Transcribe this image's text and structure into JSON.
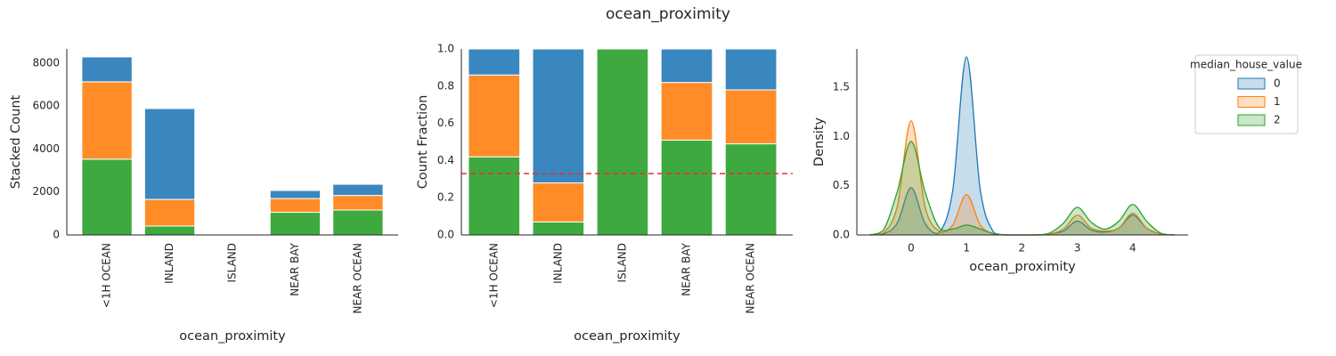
{
  "title": "ocean_proximity",
  "chart_data": [
    {
      "type": "bar",
      "stacked": true,
      "ylabel": "Stacked Count",
      "xlabel": "ocean_proximity",
      "categories": [
        "<1H OCEAN",
        "INLAND",
        "ISLAND",
        "NEAR BAY",
        "NEAR OCEAN"
      ],
      "ylim": [
        0,
        8660
      ],
      "yticks": [
        0,
        2000,
        4000,
        6000,
        8000
      ],
      "series": [
        {
          "color": "#3a87bf",
          "values": [
            1160,
            4230,
            0,
            375,
            520
          ]
        },
        {
          "color": "#ff8c26",
          "values": [
            3600,
            1240,
            0,
            640,
            680
          ]
        },
        {
          "color": "#3ea93f",
          "values": [
            3530,
            415,
            5,
            1055,
            1160
          ]
        }
      ]
    },
    {
      "type": "bar",
      "stacked": true,
      "ylabel": "Count Fraction",
      "xlabel": "ocean_proximity",
      "categories": [
        "<1H OCEAN",
        "INLAND",
        "ISLAND",
        "NEAR BAY",
        "NEAR OCEAN"
      ],
      "ylim": [
        0,
        1
      ],
      "yticks": [
        {
          "value": 0,
          "label": "0.0"
        },
        0.2,
        0.4,
        0.6,
        0.8,
        {
          "value": 1,
          "label": "1.0"
        }
      ],
      "hline": {
        "value": 0.33,
        "color": "#e8302a"
      },
      "series": [
        {
          "color": "#3a87bf",
          "values": [
            0.14,
            0.72,
            0,
            0.18,
            0.22
          ]
        },
        {
          "color": "#ff8c26",
          "values": [
            0.44,
            0.21,
            0,
            0.31,
            0.29
          ]
        },
        {
          "color": "#3ea93f",
          "values": [
            0.42,
            0.07,
            1,
            0.51,
            0.49
          ]
        }
      ]
    },
    {
      "type": "kde",
      "ylabel": "Density",
      "xlabel": "ocean_proximity",
      "x": [
        -0.75,
        -0.5,
        -0.25,
        0,
        0.25,
        0.5,
        0.75,
        1,
        1.25,
        1.5,
        1.75,
        2,
        2.25,
        2.5,
        2.75,
        3,
        3.25,
        3.5,
        3.75,
        4,
        4.25,
        4.5,
        4.75
      ],
      "xlim": [
        -0.98,
        5.0
      ],
      "xticks": [
        0,
        1,
        2,
        3,
        4
      ],
      "ylim": [
        0,
        1.89
      ],
      "yticks": [
        {
          "value": 0,
          "label": "0.0"
        },
        0.5,
        {
          "value": 1,
          "label": "1.0"
        },
        1.5
      ],
      "legend": {
        "title": "median_house_value",
        "position": "outside right"
      },
      "series": [
        {
          "name": "0",
          "color": "#1f77b4",
          "values": [
            0,
            0.01,
            0.12,
            0.48,
            0.12,
            0.02,
            0.45,
            1.81,
            0.45,
            0.02,
            0,
            0,
            0,
            0.01,
            0.04,
            0.14,
            0.05,
            0.03,
            0.07,
            0.2,
            0.07,
            0.01,
            0
          ]
        },
        {
          "name": "1",
          "color": "#ff7f0e",
          "values": [
            0,
            0.02,
            0.29,
            1.16,
            0.29,
            0.04,
            0.1,
            0.41,
            0.1,
            0.01,
            0,
            0,
            0,
            0.01,
            0.06,
            0.2,
            0.07,
            0.04,
            0.07,
            0.22,
            0.07,
            0.01,
            0
          ]
        },
        {
          "name": "2",
          "color": "#2ca02c",
          "values": [
            0,
            0.05,
            0.44,
            0.95,
            0.44,
            0.08,
            0.06,
            0.1,
            0.06,
            0.01,
            0,
            0,
            0,
            0.02,
            0.12,
            0.28,
            0.13,
            0.06,
            0.14,
            0.31,
            0.14,
            0.02,
            0
          ]
        }
      ]
    }
  ]
}
